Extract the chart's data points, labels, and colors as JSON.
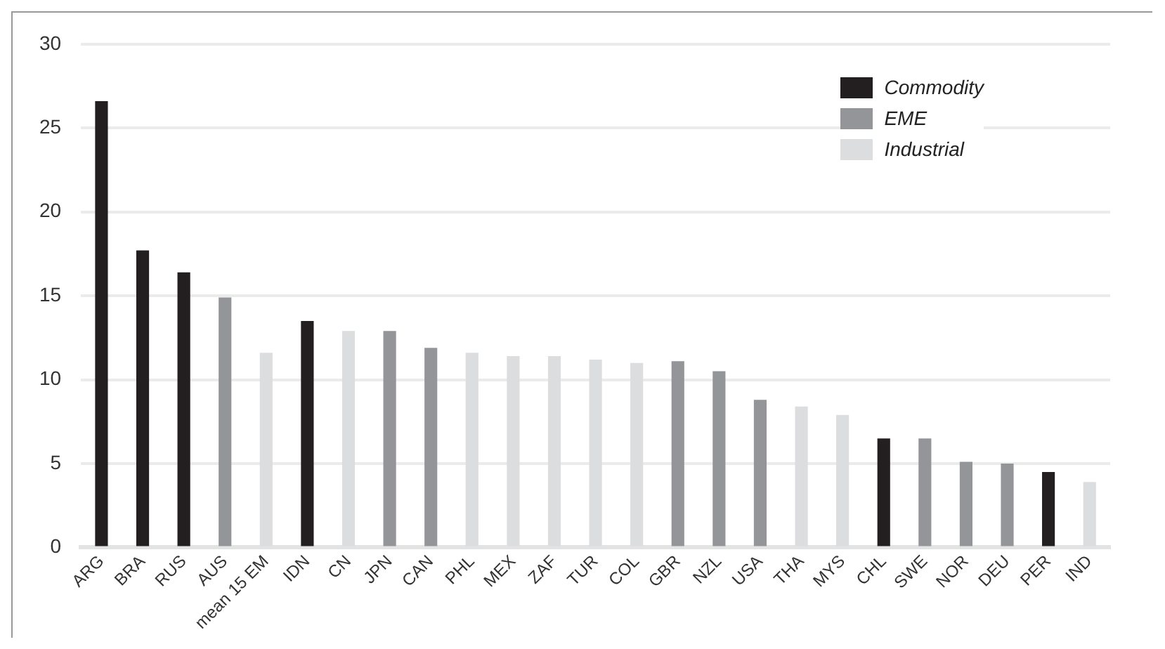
{
  "chart_data": {
    "type": "bar",
    "categories": [
      "ARG",
      "BRA",
      "RUS",
      "AUS",
      "mean 15 EM",
      "IDN",
      "CN",
      "JPN",
      "CAN",
      "PHL",
      "MEX",
      "ZAF",
      "TUR",
      "COL",
      "GBR",
      "NZL",
      "USA",
      "THA",
      "MYS",
      "CHL",
      "SWE",
      "NOR",
      "DEU",
      "PER",
      "IND"
    ],
    "series": [
      {
        "name": "Commodity",
        "color": "#231f20",
        "values": [
          26.6,
          17.7,
          16.4,
          null,
          null,
          13.5,
          null,
          null,
          null,
          null,
          null,
          null,
          null,
          null,
          null,
          null,
          null,
          null,
          null,
          6.5,
          null,
          null,
          null,
          4.5,
          null
        ]
      },
      {
        "name": "EME",
        "color": "#939598",
        "values": [
          null,
          null,
          null,
          14.9,
          null,
          null,
          null,
          12.9,
          11.9,
          null,
          null,
          null,
          null,
          null,
          11.1,
          10.5,
          8.8,
          null,
          null,
          null,
          6.5,
          5.1,
          5.0,
          null,
          null
        ]
      },
      {
        "name": "Industrial",
        "color": "#dcdddf",
        "values": [
          null,
          null,
          null,
          null,
          11.6,
          null,
          12.9,
          null,
          null,
          11.6,
          11.4,
          11.4,
          11.2,
          11.0,
          null,
          null,
          null,
          8.4,
          7.9,
          null,
          null,
          null,
          null,
          null,
          3.9
        ]
      }
    ],
    "ylim": [
      0,
      30
    ],
    "yticks": [
      0,
      5,
      10,
      15,
      20,
      25,
      30
    ],
    "grid": "y",
    "legend": "top right"
  }
}
